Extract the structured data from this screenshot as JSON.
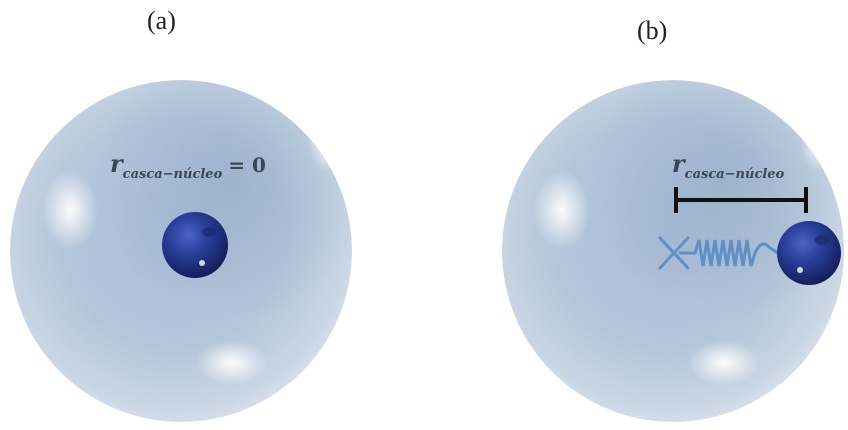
{
  "panels": [
    {
      "label": "(a)",
      "formula": {
        "symbol": "r",
        "subscript": "casca−núcleo",
        "equals": "= 0"
      }
    },
    {
      "label": "(b)",
      "formula": {
        "symbol": "r",
        "subscript": "casca−núcleo"
      }
    }
  ],
  "colors": {
    "shell": "#b7c7d9",
    "core": "#24388f",
    "spring": "#5f8fc4",
    "bar": "#111111"
  }
}
